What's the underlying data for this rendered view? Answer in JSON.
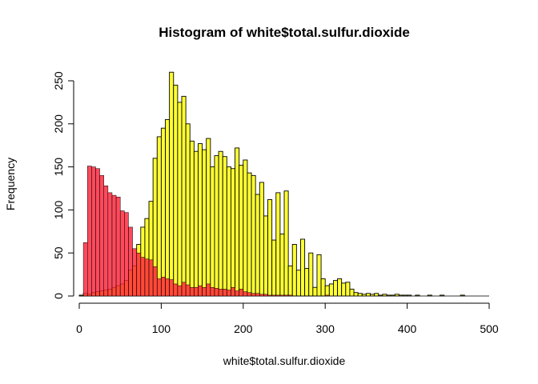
{
  "chart_data": {
    "type": "bar",
    "title": "Histogram of white$total.sulfur.dioxide",
    "xlabel": "white$total.sulfur.dioxide",
    "ylabel": "Frequency",
    "xlim": [
      0,
      500
    ],
    "ylim": [
      0,
      260
    ],
    "xticks": [
      0,
      100,
      200,
      300,
      400,
      500
    ],
    "yticks": [
      0,
      50,
      100,
      150,
      200,
      250
    ],
    "bin_width": 5,
    "grid": false,
    "series": [
      {
        "color": "#ffff33",
        "bin_starts": [
          0,
          5,
          10,
          15,
          20,
          25,
          30,
          35,
          40,
          45,
          50,
          55,
          60,
          65,
          70,
          75,
          80,
          85,
          90,
          95,
          100,
          105,
          110,
          115,
          120,
          125,
          130,
          135,
          140,
          145,
          150,
          155,
          160,
          165,
          170,
          175,
          180,
          185,
          190,
          195,
          200,
          205,
          210,
          215,
          220,
          225,
          230,
          235,
          240,
          245,
          250,
          255,
          260,
          265,
          270,
          275,
          280,
          285,
          290,
          295,
          300,
          305,
          310,
          315,
          320,
          325,
          330,
          335,
          340,
          345,
          350,
          355,
          360,
          365,
          370,
          375,
          380,
          385,
          390,
          395,
          400,
          405,
          410,
          415,
          420,
          425,
          430,
          435,
          440,
          445,
          450,
          455,
          460,
          465,
          470,
          475,
          480,
          485,
          490,
          495
        ],
        "counts": [
          1,
          3,
          2,
          4,
          5,
          6,
          7,
          8,
          10,
          12,
          14,
          18,
          30,
          35,
          60,
          80,
          90,
          110,
          160,
          185,
          195,
          205,
          260,
          245,
          225,
          232,
          200,
          180,
          168,
          177,
          170,
          183,
          150,
          163,
          168,
          162,
          150,
          148,
          172,
          152,
          158,
          143,
          140,
          118,
          132,
          93,
          112,
          65,
          120,
          72,
          122,
          35,
          60,
          30,
          66,
          32,
          50,
          10,
          48,
          20,
          12,
          14,
          18,
          20,
          15,
          16,
          8,
          4,
          3,
          2,
          3,
          2,
          3,
          1,
          2,
          1,
          1,
          2,
          1,
          1,
          1,
          0,
          1,
          0,
          0,
          1,
          0,
          0,
          1,
          0,
          0,
          0,
          0,
          1,
          0,
          0,
          0,
          0,
          0,
          0
        ],
        "counts_note": ""
      },
      {
        "color": "#ff2a40",
        "bin_starts": [
          0,
          5,
          10,
          15,
          20,
          25,
          30,
          35,
          40,
          45,
          50,
          55,
          60,
          65,
          70,
          75,
          80,
          85,
          90,
          95,
          100,
          105,
          110,
          115,
          120,
          125,
          130,
          135,
          140,
          145,
          150,
          155,
          160,
          165,
          170,
          175,
          180,
          185,
          190,
          195,
          200,
          205,
          210,
          215,
          220,
          225,
          230,
          235,
          240,
          245,
          250,
          255,
          260,
          265,
          270,
          275,
          280,
          285,
          290,
          295,
          300
        ],
        "counts": [
          0,
          62,
          151,
          150,
          148,
          140,
          128,
          120,
          117,
          115,
          99,
          97,
          80,
          55,
          50,
          45,
          43,
          42,
          34,
          20,
          22,
          20,
          19,
          14,
          12,
          16,
          13,
          10,
          10,
          12,
          10,
          14,
          10,
          9,
          8,
          8,
          7,
          10,
          6,
          8,
          5,
          4,
          3,
          3,
          2,
          2,
          1,
          1,
          1,
          1,
          1,
          1,
          0,
          0,
          0,
          0,
          0,
          0,
          0,
          0,
          1
        ]
      }
    ]
  }
}
